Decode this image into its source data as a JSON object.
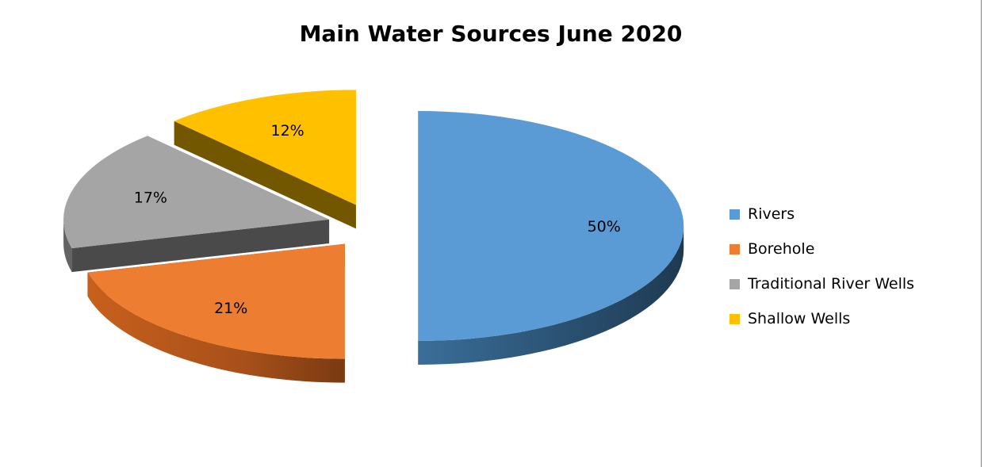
{
  "chart_data": {
    "type": "pie",
    "title": "Main Water Sources June 2020",
    "categories": [
      "Rivers",
      "Borehole",
      "Traditional River Wells",
      "Shallow Wells"
    ],
    "values": [
      50,
      21,
      17,
      12
    ],
    "labels": [
      "50%",
      "21%",
      "17%",
      "12%"
    ],
    "colors": [
      "#5B9BD5",
      "#ED7D31",
      "#A5A5A5",
      "#FFC000"
    ],
    "style": "3d-exploded",
    "legend_position": "right"
  }
}
